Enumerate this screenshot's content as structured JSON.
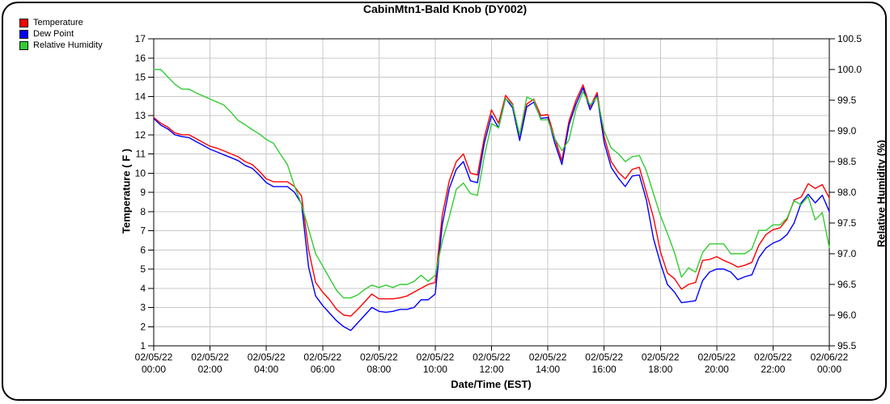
{
  "window": {
    "title": "CabinMtn1-Bald Knob (DY002)"
  },
  "legend": {
    "items": [
      {
        "label": "Temperature",
        "color": "#ff0000"
      },
      {
        "label": "Dew Point",
        "color": "#0000ff"
      },
      {
        "label": "Relative Humidity",
        "color": "#33cc33"
      }
    ]
  },
  "colors": {
    "grid": "#c8c8c8",
    "axis": "#000000",
    "background": "#ffffff"
  },
  "chart_data": {
    "type": "line",
    "title": "CabinMtn1-Bald Knob (DY002)",
    "xlabel": "Date/Time (EST)",
    "ylabel_left": "Temperature ( F )",
    "ylabel_right": "Relative Humidity (%)",
    "grid": true,
    "legend_position": "top-left",
    "x_hours": {
      "start": 0,
      "step": 0.25,
      "end": 24
    },
    "x_ticks": [
      {
        "hour": 0,
        "date": "02/05/22",
        "time": "00:00"
      },
      {
        "hour": 2,
        "date": "02/05/22",
        "time": "02:00"
      },
      {
        "hour": 4,
        "date": "02/05/22",
        "time": "04:00"
      },
      {
        "hour": 6,
        "date": "02/05/22",
        "time": "06:00"
      },
      {
        "hour": 8,
        "date": "02/05/22",
        "time": "08:00"
      },
      {
        "hour": 10,
        "date": "02/05/22",
        "time": "10:00"
      },
      {
        "hour": 12,
        "date": "02/05/22",
        "time": "12:00"
      },
      {
        "hour": 14,
        "date": "02/05/22",
        "time": "14:00"
      },
      {
        "hour": 16,
        "date": "02/05/22",
        "time": "16:00"
      },
      {
        "hour": 18,
        "date": "02/05/22",
        "time": "18:00"
      },
      {
        "hour": 20,
        "date": "02/05/22",
        "time": "20:00"
      },
      {
        "hour": 22,
        "date": "02/05/22",
        "time": "22:00"
      },
      {
        "hour": 24,
        "date": "02/06/22",
        "time": "00:00"
      }
    ],
    "ylim_left": [
      1,
      17
    ],
    "yticks_left": [
      1,
      2,
      3,
      4,
      5,
      6,
      7,
      8,
      9,
      10,
      11,
      12,
      13,
      14,
      15,
      16,
      17
    ],
    "ylim_right": [
      95.5,
      100.5
    ],
    "yticks_right": [
      95.5,
      96.0,
      96.5,
      97.0,
      97.5,
      98.0,
      98.5,
      99.0,
      99.5,
      100.0,
      100.5
    ],
    "series": [
      {
        "name": "Temperature",
        "axis": "left",
        "color": "#ff0000",
        "values": [
          12.9,
          12.6,
          12.4,
          12.1,
          12.0,
          12.0,
          11.8,
          11.6,
          11.4,
          11.3,
          11.15,
          11.0,
          10.85,
          10.6,
          10.45,
          10.1,
          9.7,
          9.55,
          9.55,
          9.55,
          9.3,
          8.8,
          6.0,
          4.3,
          3.8,
          3.4,
          2.9,
          2.6,
          2.55,
          2.9,
          3.3,
          3.7,
          3.45,
          3.45,
          3.45,
          3.5,
          3.6,
          3.8,
          4.0,
          4.2,
          4.3,
          7.8,
          9.6,
          10.6,
          11.0,
          10.0,
          9.9,
          11.9,
          13.3,
          12.6,
          14.05,
          13.6,
          11.9,
          13.6,
          13.85,
          13.0,
          13.05,
          11.8,
          10.65,
          12.7,
          13.8,
          14.6,
          13.45,
          14.2,
          11.9,
          10.6,
          10.05,
          9.7,
          10.2,
          10.3,
          9.0,
          7.7,
          5.9,
          4.8,
          4.5,
          3.95,
          4.2,
          4.3,
          5.45,
          5.5,
          5.65,
          5.45,
          5.3,
          5.1,
          5.2,
          5.35,
          6.25,
          6.8,
          7.05,
          7.15,
          7.6,
          8.6,
          8.75,
          9.45,
          9.2,
          9.4,
          8.7
        ]
      },
      {
        "name": "Dew Point",
        "axis": "left",
        "color": "#0000ff",
        "values": [
          12.85,
          12.5,
          12.3,
          12.0,
          11.9,
          11.85,
          11.65,
          11.45,
          11.25,
          11.1,
          10.95,
          10.8,
          10.65,
          10.4,
          10.25,
          9.9,
          9.5,
          9.3,
          9.3,
          9.3,
          9.0,
          8.4,
          5.1,
          3.6,
          3.1,
          2.7,
          2.3,
          2.0,
          1.8,
          2.2,
          2.6,
          3.0,
          2.8,
          2.75,
          2.8,
          2.9,
          2.9,
          3.0,
          3.4,
          3.4,
          3.7,
          7.3,
          9.2,
          10.2,
          10.6,
          9.6,
          9.5,
          11.6,
          13.0,
          12.35,
          13.9,
          13.4,
          11.7,
          13.45,
          13.7,
          12.85,
          12.9,
          11.55,
          10.45,
          12.5,
          13.6,
          14.45,
          13.3,
          14.05,
          11.6,
          10.3,
          9.75,
          9.3,
          9.85,
          9.9,
          8.6,
          6.6,
          5.3,
          4.2,
          3.8,
          3.25,
          3.3,
          3.35,
          4.4,
          4.85,
          5.0,
          5.0,
          4.85,
          4.45,
          4.6,
          4.7,
          5.6,
          6.1,
          6.35,
          6.5,
          6.8,
          7.4,
          8.45,
          8.9,
          8.45,
          8.85,
          8.0
        ]
      },
      {
        "name": "Relative Humidity",
        "axis": "right",
        "color": "#33cc33",
        "values": [
          100.0,
          100.0,
          99.88,
          99.76,
          99.68,
          99.68,
          99.62,
          99.57,
          99.52,
          99.47,
          99.42,
          99.3,
          99.17,
          99.1,
          99.02,
          98.95,
          98.86,
          98.8,
          98.62,
          98.45,
          98.1,
          97.8,
          97.4,
          97.0,
          96.8,
          96.6,
          96.4,
          96.28,
          96.28,
          96.33,
          96.42,
          96.49,
          96.45,
          96.49,
          96.45,
          96.5,
          96.5,
          96.55,
          96.65,
          96.55,
          96.65,
          97.2,
          97.6,
          98.05,
          98.15,
          97.98,
          97.95,
          98.6,
          99.12,
          99.05,
          99.53,
          99.42,
          98.93,
          99.55,
          99.5,
          99.18,
          99.18,
          98.87,
          98.68,
          98.85,
          99.35,
          99.64,
          99.42,
          99.55,
          99.0,
          98.72,
          98.63,
          98.5,
          98.58,
          98.6,
          98.35,
          97.98,
          97.62,
          97.33,
          97.02,
          96.62,
          96.77,
          96.7,
          97.02,
          97.16,
          97.16,
          97.16,
          97.0,
          97.0,
          97.0,
          97.08,
          97.38,
          97.38,
          97.47,
          97.47,
          97.58,
          97.86,
          97.8,
          97.93,
          97.55,
          97.67,
          97.1
        ]
      }
    ]
  }
}
